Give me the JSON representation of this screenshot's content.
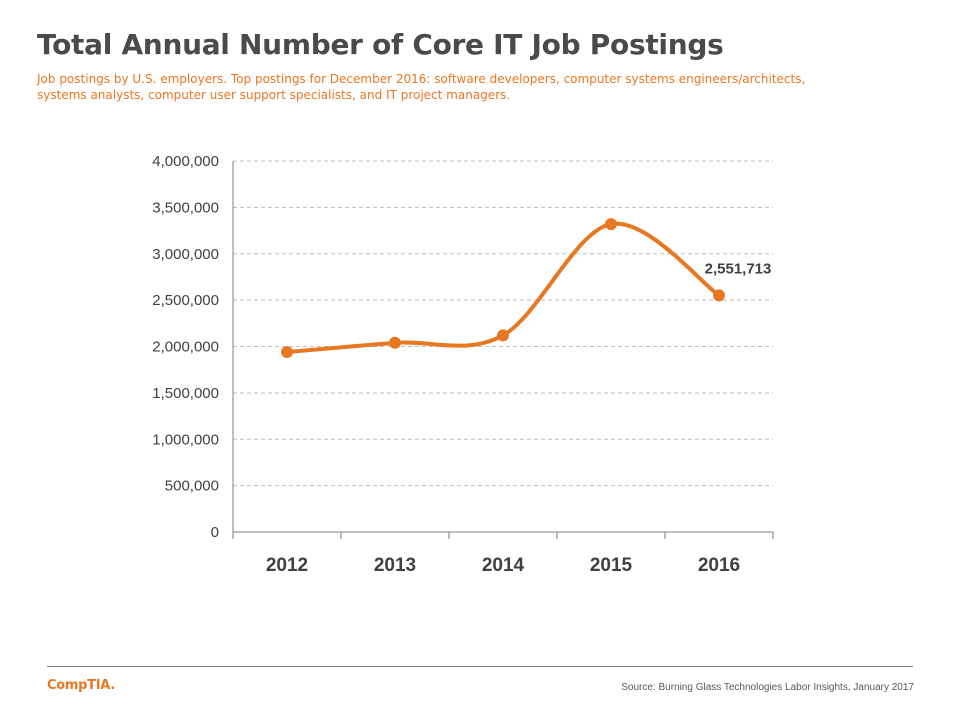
{
  "slide": {
    "title": "Total Annual Number of Core IT Job Postings",
    "subtitle": "Job postings by U.S. employers. Top postings for December 2016: software developers, computer systems engineers/architects, systems analysts, computer user support specialists, and IT project managers."
  },
  "footer": {
    "logo_text": "CompTIA.",
    "source": "Source: Burning Glass Technologies Labor Insights, January 2017"
  },
  "colors": {
    "accent": "#e87722",
    "title": "#4a4a4a",
    "gridline": "#bfbfbf",
    "axis": "#7f7f7f"
  },
  "chart_data": {
    "type": "line",
    "title": "",
    "xlabel": "",
    "ylabel": "",
    "categories": [
      "2012",
      "2013",
      "2014",
      "2015",
      "2016"
    ],
    "series": [
      {
        "values": [
          1940000,
          2040000,
          2120000,
          3320000,
          2551713
        ],
        "color": "#e87722",
        "smooth": true
      }
    ],
    "ylim": [
      0,
      4000000
    ],
    "y_ticks": [
      0,
      500000,
      1000000,
      1500000,
      2000000,
      2500000,
      3000000,
      3500000,
      4000000
    ],
    "y_tick_labels": [
      "0",
      "500,000",
      "1,000,000",
      "1,500,000",
      "2,000,000",
      "2,500,000",
      "3,000,000",
      "3,500,000",
      "4,000,000"
    ],
    "data_labels": [
      {
        "category": "2016",
        "text": "2,551,713"
      }
    ],
    "grid": true,
    "gridline_style": "dashed",
    "legend": "none"
  }
}
